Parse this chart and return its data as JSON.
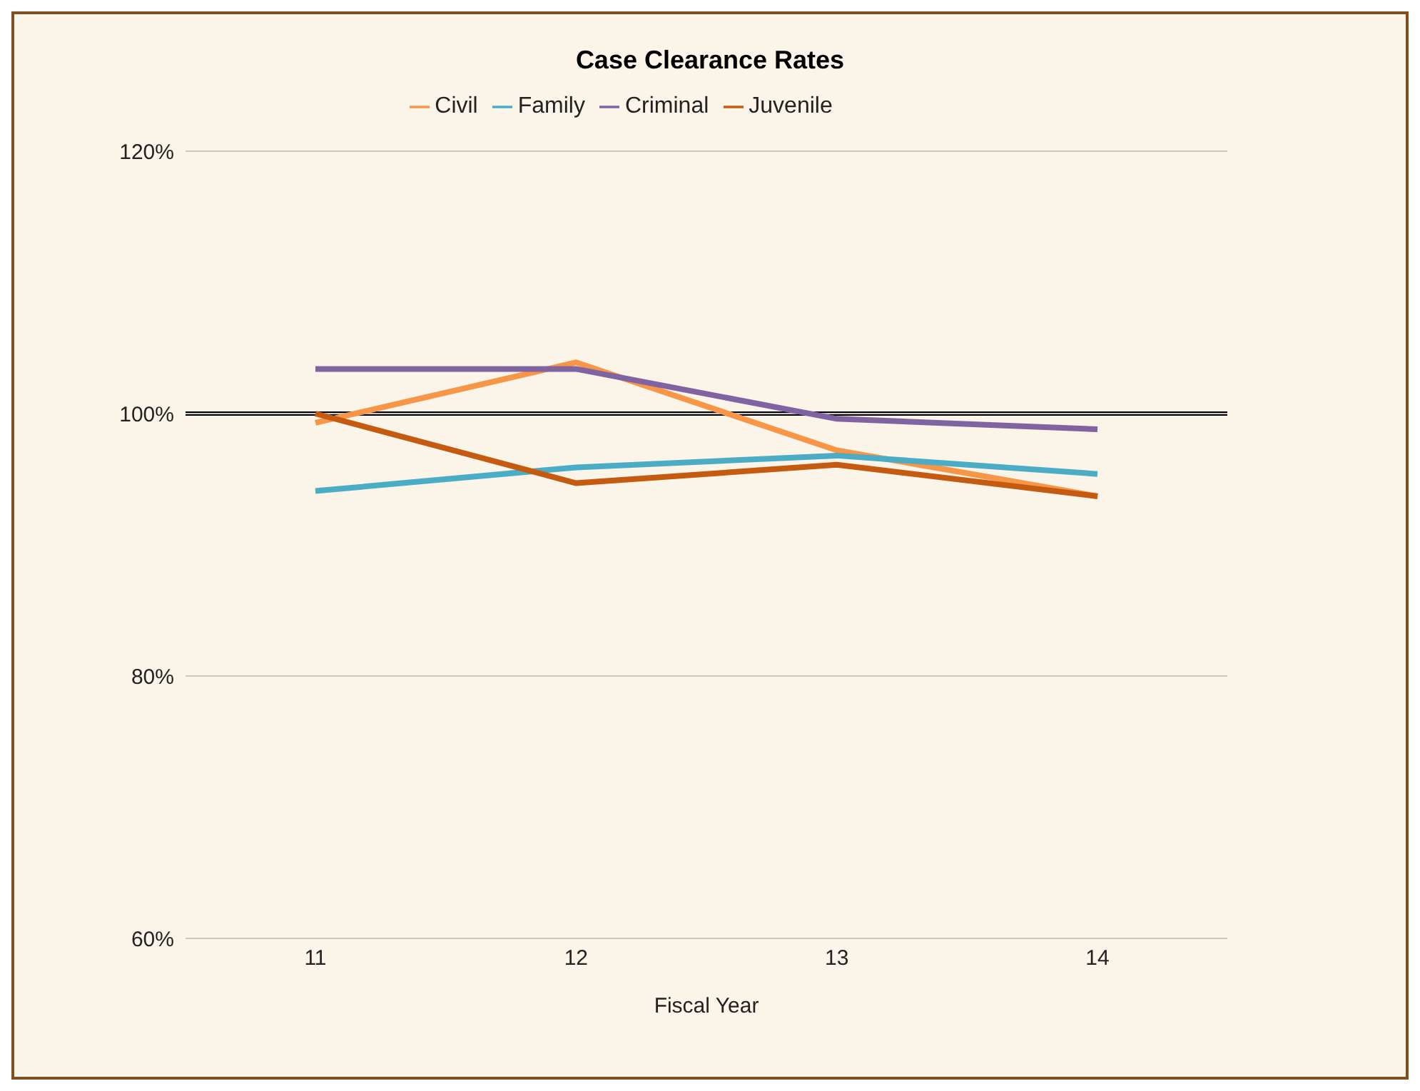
{
  "chart_data": {
    "type": "line",
    "title": "Case Clearance Rates",
    "xlabel": "Fiscal Year",
    "categories": [
      "11",
      "12",
      "13",
      "14"
    ],
    "series": [
      {
        "name": "Civil",
        "color": "#f79646",
        "values": [
          99.3,
          103.9,
          97.2,
          93.7
        ]
      },
      {
        "name": "Family",
        "color": "#4bacc6",
        "values": [
          94.1,
          95.9,
          96.8,
          95.4
        ]
      },
      {
        "name": "Criminal",
        "color": "#8064a2",
        "values": [
          103.4,
          103.4,
          99.6,
          98.8
        ]
      },
      {
        "name": "Juvenile",
        "color": "#c55a11",
        "values": [
          100,
          94.7,
          96.1,
          93.7
        ]
      }
    ],
    "ylim": [
      60,
      120
    ],
    "yticks": [
      {
        "value": 60,
        "label": "60%"
      },
      {
        "value": 80,
        "label": "80%"
      },
      {
        "value": 100,
        "label": "100%"
      },
      {
        "value": 120,
        "label": "120%"
      }
    ],
    "grid": "y",
    "legend": "top",
    "marker": "none",
    "line_style": "solid",
    "ref_lines": [
      {
        "axis": "y",
        "value": 100,
        "color": "#000000"
      }
    ]
  }
}
